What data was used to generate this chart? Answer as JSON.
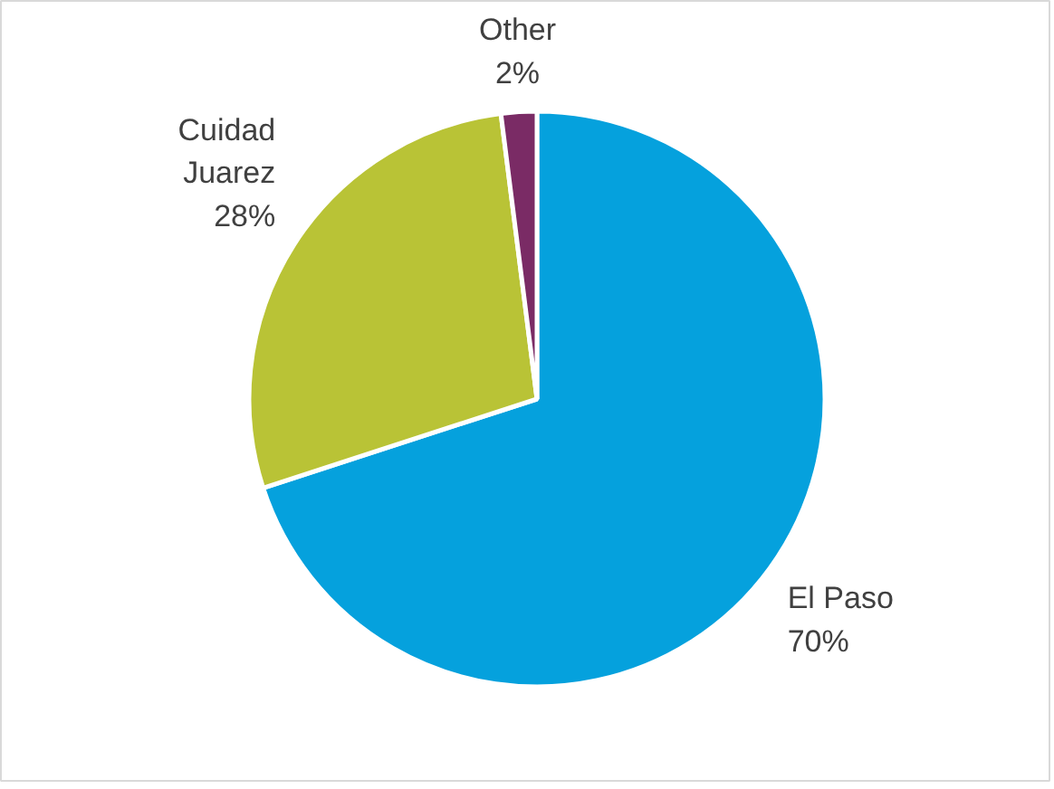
{
  "chart_data": {
    "type": "pie",
    "categories": [
      "El Paso",
      "Cuidad Juarez",
      "Other"
    ],
    "values": [
      70,
      28,
      2
    ],
    "colors": [
      "#05a1dd",
      "#b9c336",
      "#7a2b65"
    ],
    "value_labels": [
      "70%",
      "28%",
      "2%"
    ]
  }
}
